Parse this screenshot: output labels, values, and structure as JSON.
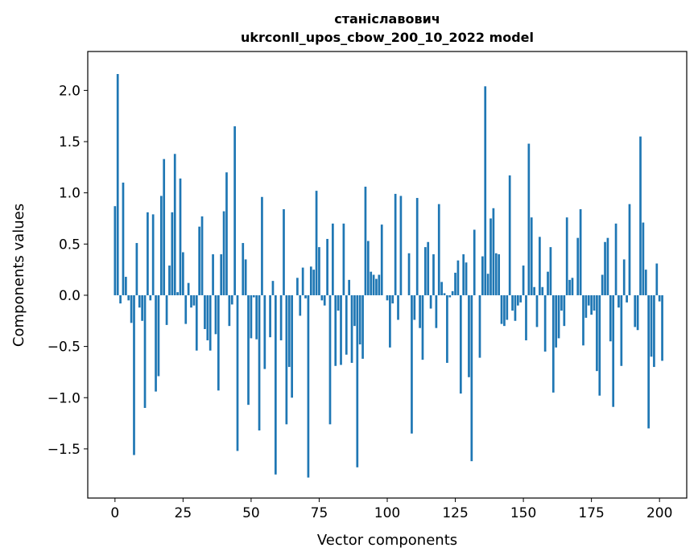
{
  "chart_data": {
    "type": "bar",
    "title_line1": "станіславович",
    "title_line2": "ukrconll_upos_cbow_200_10_2022 model",
    "xlabel": "Vector components",
    "ylabel": "Components values",
    "xlim": [
      -10,
      210
    ],
    "ylim": [
      -1.98,
      2.38
    ],
    "xticks": [
      0,
      25,
      50,
      75,
      100,
      125,
      150,
      175,
      200
    ],
    "yticks": [
      -1.5,
      -1.0,
      -0.5,
      0.0,
      0.5,
      1.0,
      1.5,
      2.0
    ],
    "ytick_labels": [
      "−1.5",
      "−1.0",
      "−0.5",
      "0.0",
      "0.5",
      "1.0",
      "1.5",
      "2.0"
    ],
    "bar_color": "#1f77b4",
    "values": [
      0.87,
      2.16,
      -0.08,
      1.1,
      0.18,
      -0.05,
      -0.27,
      -1.56,
      0.51,
      -0.12,
      -0.25,
      -1.1,
      0.81,
      -0.05,
      0.79,
      -0.94,
      -0.79,
      0.97,
      1.33,
      -0.29,
      0.29,
      0.81,
      1.38,
      0.03,
      1.14,
      0.42,
      -0.28,
      0.12,
      -0.12,
      -0.1,
      -0.54,
      0.67,
      0.77,
      -0.33,
      -0.44,
      -0.54,
      0.4,
      -0.38,
      -0.93,
      0.4,
      0.82,
      1.2,
      -0.3,
      -0.09,
      1.65,
      -1.52,
      0.0,
      0.51,
      0.35,
      -1.07,
      -0.42,
      -0.02,
      -0.43,
      -1.32,
      0.96,
      -0.72,
      0.0,
      -0.41,
      0.14,
      -1.75,
      0.0,
      -0.44,
      0.84,
      -1.26,
      -0.7,
      -1.0,
      0.0,
      0.17,
      -0.2,
      0.27,
      -0.03,
      -1.78,
      0.28,
      0.25,
      1.02,
      0.47,
      -0.05,
      -0.1,
      0.55,
      -1.26,
      0.7,
      -0.69,
      -0.15,
      -0.68,
      0.7,
      -0.58,
      0.15,
      -0.66,
      -0.3,
      -1.68,
      -0.48,
      -0.62,
      1.06,
      0.53,
      0.23,
      0.2,
      0.16,
      0.2,
      0.69,
      0.0,
      -0.05,
      -0.51,
      -0.08,
      0.99,
      -0.24,
      0.97,
      0.0,
      0.0,
      0.41,
      -1.35,
      -0.24,
      0.95,
      -0.32,
      -0.63,
      0.47,
      0.52,
      -0.13,
      0.4,
      -0.32,
      0.89,
      0.13,
      0.02,
      -0.66,
      -0.02,
      0.04,
      0.22,
      0.34,
      -0.96,
      0.4,
      0.32,
      -0.8,
      -1.62,
      0.64,
      0.0,
      -0.61,
      0.38,
      2.04,
      0.21,
      0.75,
      0.85,
      0.41,
      0.4,
      -0.28,
      -0.3,
      -0.24,
      1.17,
      -0.15,
      -0.25,
      -0.1,
      -0.07,
      0.29,
      -0.44,
      1.48,
      0.76,
      0.08,
      -0.31,
      0.57,
      0.08,
      -0.55,
      0.23,
      0.47,
      -0.95,
      -0.51,
      -0.42,
      -0.15,
      -0.3,
      0.76,
      0.15,
      0.17,
      0.0,
      0.56,
      0.84,
      -0.49,
      -0.22,
      -0.1,
      -0.19,
      -0.15,
      -0.74,
      -0.98,
      0.2,
      0.52,
      0.56,
      -0.45,
      -1.09,
      0.7,
      -0.12,
      -0.69,
      0.35,
      -0.07,
      0.89,
      0.0,
      -0.31,
      -0.34,
      1.55,
      0.71,
      0.25,
      -1.3,
      -0.6,
      -0.7,
      0.31,
      -0.06,
      -0.64
    ]
  }
}
